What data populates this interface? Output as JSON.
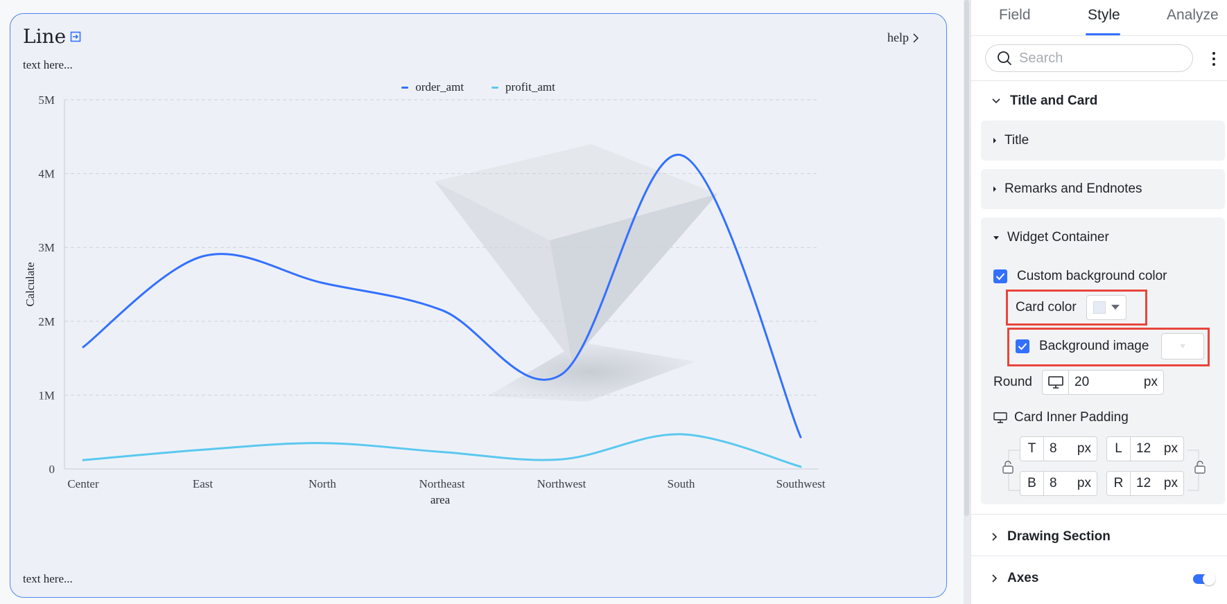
{
  "card": {
    "title": "Line",
    "help_label": "help",
    "remark_top": "text here...",
    "remark_bottom": "text here..."
  },
  "legend": [
    {
      "name": "order_amt",
      "color": "#3370ff"
    },
    {
      "name": "profit_amt",
      "color": "#5ac8f0"
    }
  ],
  "chart_data": {
    "type": "line",
    "categories": [
      "Center",
      "East",
      "North",
      "Northeast",
      "Northwest",
      "South",
      "Southwest"
    ],
    "series": [
      {
        "name": "order_amt",
        "color": "#3370ff",
        "values": [
          1650000,
          2880000,
          2520000,
          2150000,
          1280000,
          4250000,
          430000
        ]
      },
      {
        "name": "profit_amt",
        "color": "#5ac8f0",
        "values": [
          120000,
          260000,
          350000,
          230000,
          130000,
          470000,
          30000
        ]
      }
    ],
    "xlabel": "area",
    "ylabel": "Calculate",
    "ylim": [
      0,
      5000000
    ],
    "yticks": [
      "0",
      "1M",
      "2M",
      "3M",
      "4M",
      "5M"
    ],
    "grid": true,
    "smooth": true,
    "legend_position": "top-center"
  },
  "panel": {
    "tabs": [
      {
        "label": "Field",
        "active": false
      },
      {
        "label": "Style",
        "active": true
      },
      {
        "label": "Analyze",
        "active": false
      }
    ],
    "search_placeholder": "Search",
    "title_and_card": "Title and Card",
    "title_group": "Title",
    "remarks_group": "Remarks and Endnotes",
    "widget_container": "Widget Container",
    "custom_bg_color": "Custom background color",
    "card_color": "Card color",
    "card_color_value": "#e6ebf5",
    "background_image": "Background image",
    "round_label": "Round",
    "round_value": "20",
    "round_unit": "px",
    "card_inner_padding": "Card Inner Padding",
    "padding": {
      "t_label": "T",
      "t_value": "8",
      "b_label": "B",
      "b_value": "8",
      "l_label": "L",
      "l_value": "12",
      "r_label": "R",
      "r_value": "12",
      "unit": "px"
    },
    "drawing_section": "Drawing Section",
    "axes": "Axes"
  }
}
